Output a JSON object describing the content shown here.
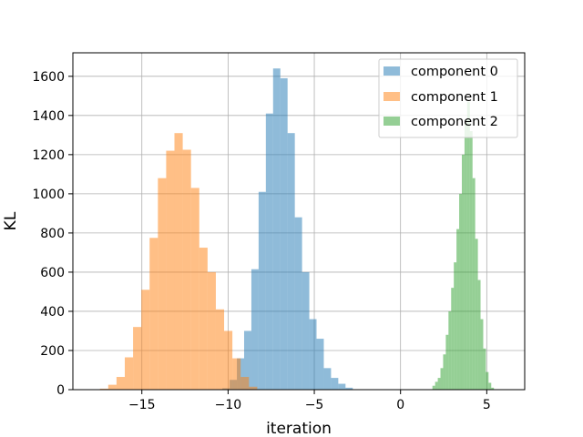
{
  "chart_data": {
    "type": "histogram",
    "title": "",
    "xlabel": "iteration",
    "ylabel": "KL",
    "xlim": [
      -19,
      7.2
    ],
    "ylim": [
      0,
      1720
    ],
    "xticks": [
      -15,
      -10,
      -5,
      0,
      5
    ],
    "xtick_labels": [
      "−15",
      "−10",
      "−5",
      "0",
      "5"
    ],
    "yticks": [
      0,
      200,
      400,
      600,
      800,
      1000,
      1200,
      1400,
      1600
    ],
    "ytick_labels": [
      "0",
      "200",
      "400",
      "600",
      "800",
      "1000",
      "1200",
      "1400",
      "1600"
    ],
    "grid": true,
    "legend_position": "upper right",
    "bar_opacity": 0.5,
    "series": [
      {
        "name": "component 0",
        "color": "#1f77b4",
        "bin_start": -10.33,
        "bin_width": 0.42,
        "counts": [
          7,
          50,
          160,
          300,
          615,
          1010,
          1410,
          1640,
          1590,
          1310,
          880,
          600,
          360,
          260,
          110,
          60,
          30,
          10
        ]
      },
      {
        "name": "component 1",
        "color": "#ff7f0e",
        "bin_start": -17.43,
        "bin_width": 0.48,
        "counts": [
          5,
          25,
          65,
          165,
          320,
          510,
          775,
          1080,
          1220,
          1310,
          1225,
          1030,
          725,
          600,
          410,
          300,
          160,
          65,
          15
        ]
      },
      {
        "name": "component 2",
        "color": "#2ca02c",
        "bin_start": 1.85,
        "bin_width": 0.155,
        "counts": [
          20,
          40,
          60,
          110,
          180,
          280,
          400,
          520,
          650,
          820,
          1000,
          1200,
          1380,
          1470,
          1320,
          1080,
          770,
          560,
          360,
          210,
          90,
          35,
          10
        ]
      }
    ]
  }
}
